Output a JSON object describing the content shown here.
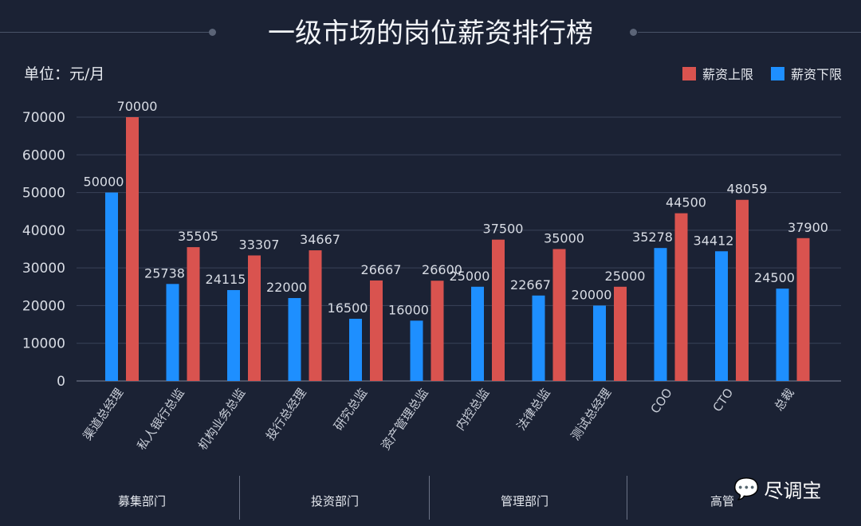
{
  "chart_data": {
    "type": "bar",
    "title": "一级市场的岗位薪资排行榜",
    "unit_label": "单位：元/月",
    "categories": [
      "渠道总经理",
      "私人银行总监",
      "机构业务总监",
      "投行总经理",
      "研究总监",
      "资产管理总监",
      "内控总监",
      "法律总监",
      "测试总经理",
      "COO",
      "CTO",
      "总裁"
    ],
    "series": [
      {
        "name": "薪资下限",
        "color": "#1e8fff",
        "values": [
          50000,
          25738,
          24115,
          22000,
          16500,
          16000,
          25000,
          22667,
          20000,
          35278,
          34412,
          24500
        ]
      },
      {
        "name": "薪资上限",
        "color": "#d9534f",
        "values": [
          70000,
          35505,
          33307,
          34667,
          26667,
          26600,
          37500,
          35000,
          25000,
          44500,
          48059,
          37900
        ]
      }
    ],
    "legend_order": [
      1,
      0
    ],
    "yticks": [
      0,
      10000,
      20000,
      30000,
      40000,
      50000,
      60000,
      70000
    ],
    "ylim": [
      0,
      70000
    ],
    "grid": true,
    "legend_position": "top-right",
    "departments": [
      "募集部门",
      "投资部门",
      "管理部门",
      "高管"
    ]
  },
  "watermark": "尽调宝"
}
